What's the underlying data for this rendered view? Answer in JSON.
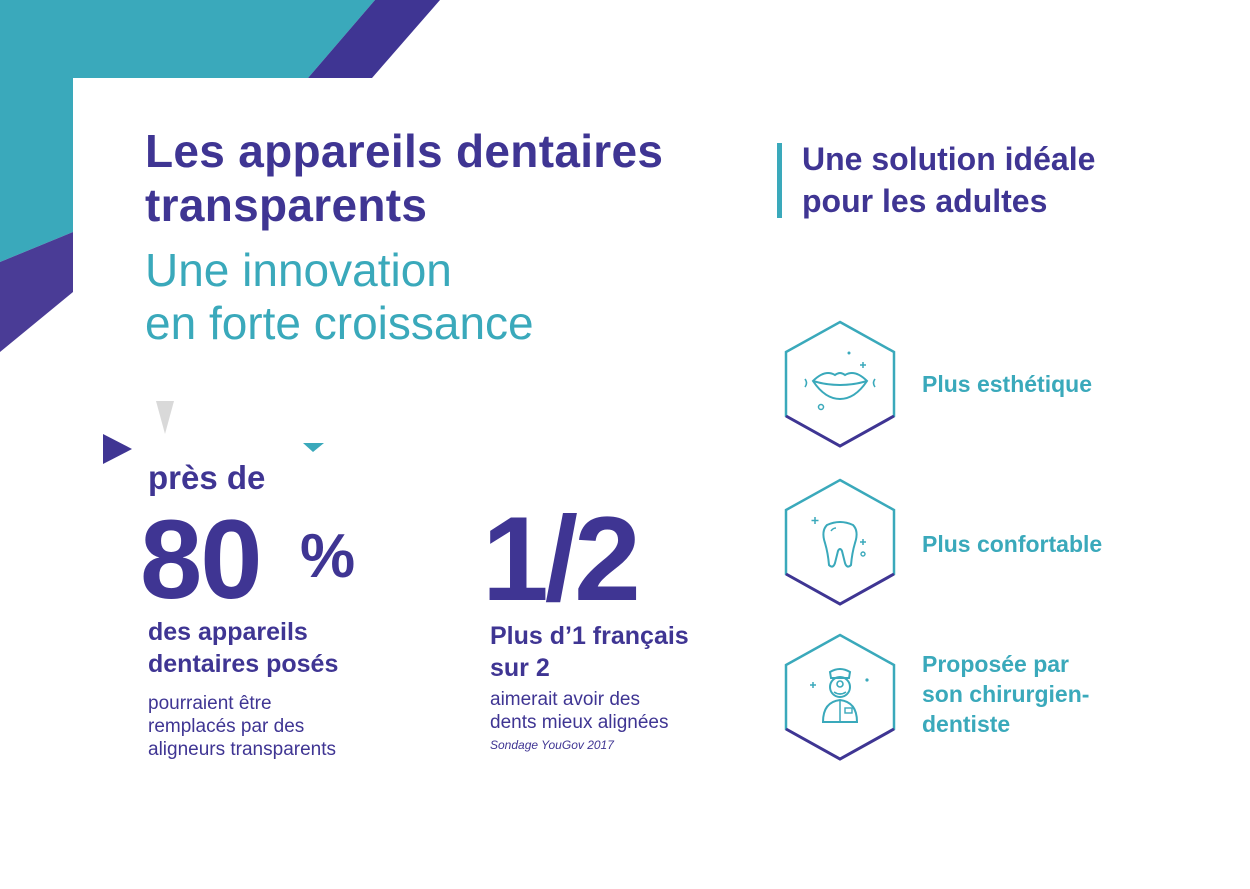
{
  "colors": {
    "teal": "#3aa9bb",
    "purple": "#3f3593",
    "grey": "#d9d9d9",
    "white": "#ffffff"
  },
  "title": {
    "line1": "Les appareils dentaires",
    "line2": "transparents",
    "subline1": "Une innovation",
    "subline2": "en forte croissance"
  },
  "right_heading": {
    "line1": "Une solution idéale",
    "line2": "pour les adultes"
  },
  "stat1": {
    "prefix": "près de",
    "number": "80",
    "unit": "%",
    "strong_line1": "des appareils",
    "strong_line2": "dentaires posés",
    "text_line1": "pourraient être",
    "text_line2": "remplacés par des",
    "text_line3": "aligneurs transparents"
  },
  "stat2": {
    "number": "1/2",
    "strong_line1": "Plus d’1 français",
    "strong_line2": "sur 2",
    "text_line1": "aimerait avoir des",
    "text_line2": "dents mieux alignées",
    "source": "Sondage YouGov 2017"
  },
  "benefits": [
    {
      "icon": "lips-icon",
      "lines": [
        "Plus esthétique"
      ]
    },
    {
      "icon": "tooth-icon",
      "lines": [
        "Plus confortable"
      ]
    },
    {
      "icon": "dentist-icon",
      "lines": [
        "Proposée par",
        "son chirurgien-",
        "dentiste"
      ]
    }
  ]
}
